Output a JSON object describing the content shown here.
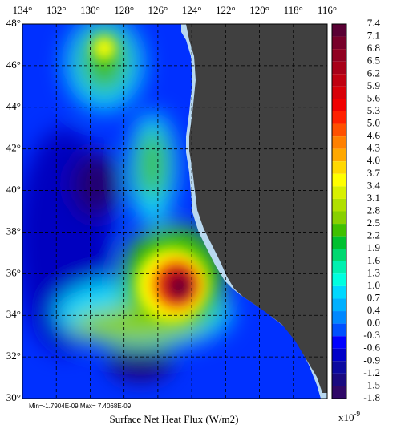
{
  "map": {
    "lon_labels": [
      "134°",
      "132°",
      "130°",
      "128°",
      "126°",
      "124°",
      "122°",
      "120°",
      "118°",
      "116°"
    ],
    "lat_labels": [
      "48°",
      "46°",
      "44°",
      "42°",
      "40°",
      "38°",
      "36°",
      "34°",
      "32°",
      "30°"
    ]
  },
  "colorbar": {
    "labels": [
      "7.4",
      "7.1",
      "6.8",
      "6.5",
      "6.2",
      "5.9",
      "5.6",
      "5.3",
      "5.0",
      "4.6",
      "4.3",
      "4.0",
      "3.7",
      "3.4",
      "3.1",
      "2.8",
      "2.5",
      "2.2",
      "1.9",
      "1.6",
      "1.3",
      "1.0",
      "0.7",
      "0.4",
      "0.0",
      "-0.3",
      "-0.6",
      "-0.9",
      "-1.2",
      "-1.5",
      "-1.8"
    ],
    "colors": [
      "#5a0034",
      "#78002a",
      "#900020",
      "#a80018",
      "#c00010",
      "#d80008",
      "#f00000",
      "#ff2000",
      "#ff5000",
      "#ff8000",
      "#ffa800",
      "#ffd800",
      "#ffff00",
      "#d8f000",
      "#b0e000",
      "#88d000",
      "#40c000",
      "#00c030",
      "#00d870",
      "#00f0b0",
      "#00ffe0",
      "#00d8ff",
      "#00b0ff",
      "#0088ff",
      "#0050ff",
      "#0000ff",
      "#0000c8",
      "#0c0aa0",
      "#1a0a80",
      "#300868"
    ],
    "scale": "x10",
    "exponent": "-9"
  },
  "stats": "Min=-1.7904E-09  Max= 7.4068E-09",
  "title": "Surface Net Heat Flux (W/m2)"
}
